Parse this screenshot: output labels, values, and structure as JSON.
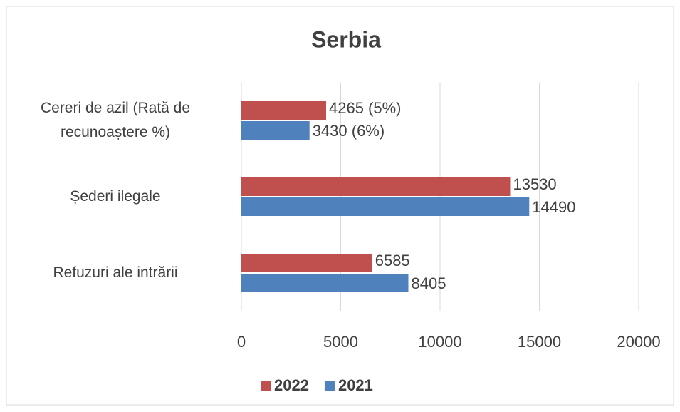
{
  "chart_data": {
    "type": "hbar",
    "title": "Serbia",
    "categories": [
      "Cereri de azil (Rată de recunoaștere %)",
      "Șederi ilegale",
      "Refuzuri ale intrării"
    ],
    "series": [
      {
        "name": "2022",
        "color": "#c0504d",
        "values": [
          4265,
          13530,
          6585
        ],
        "value_labels": [
          "4265 (5%)",
          "13530",
          "6585"
        ]
      },
      {
        "name": "2021",
        "color": "#4f81bd",
        "values": [
          3430,
          14490,
          8405
        ],
        "value_labels": [
          "3430 (6%)",
          "14490",
          "8405"
        ]
      }
    ],
    "xlim": [
      0,
      20000
    ],
    "xticks": [
      0,
      5000,
      10000,
      15000,
      20000
    ],
    "grid": true,
    "legend": "bottom"
  }
}
